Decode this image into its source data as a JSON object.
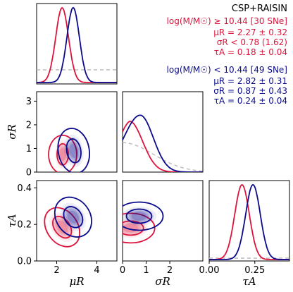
{
  "colors": {
    "high_mass": "#dc143c",
    "low_mass": "#0a0a8c",
    "prior": "#bbbbbb"
  },
  "legend": {
    "title": "CSP+RAISIN",
    "high_mass": {
      "header": "log(M/M☉) ≥ 10.44 [30 SNe]",
      "lines": [
        "μR = 2.27 ± 0.32",
        "σR < 0.78 (1.62)",
        "τA = 0.18 ± 0.04"
      ]
    },
    "low_mass": {
      "header": "log(M/M☉) < 10.44 [49 SNe]",
      "lines": [
        "μR = 2.82 ± 0.31",
        "σR = 0.87 ± 0.43",
        "τA = 0.24 ± 0.04"
      ]
    }
  },
  "chart_data": {
    "type": "corner",
    "parameters": [
      "μR",
      "σR",
      "τA"
    ],
    "axis_labels": {
      "mu_R": "μR",
      "sigma_R": "σR",
      "tau_A": "τA"
    },
    "ranges": {
      "mu_R": [
        1,
        5
      ],
      "sigma_R": [
        0,
        3.4
      ],
      "tau_A": [
        0,
        0.44
      ]
    },
    "ticks": {
      "mu_R": [
        {
          "v": 2,
          "t": "2"
        },
        {
          "v": 4,
          "t": "4"
        }
      ],
      "sigma_R": [
        {
          "v": 0,
          "t": "0"
        },
        {
          "v": 1,
          "t": "1"
        },
        {
          "v": 2,
          "t": "2"
        },
        {
          "v": 3,
          "t": "3"
        }
      ],
      "tau_A_y": [
        {
          "v": 0.0,
          "t": "0.0"
        },
        {
          "v": 0.2,
          "t": "0.2"
        },
        {
          "v": 0.4,
          "t": "0.4"
        }
      ],
      "tau_A_x": [
        {
          "v": 0.0,
          "t": "0.00"
        },
        {
          "v": 0.25,
          "t": "0.25"
        }
      ]
    },
    "series": [
      {
        "name": "high_mass",
        "mu_R": [
          2.27,
          0.32
        ],
        "sigma_R_peak": 0.3,
        "sigma_R_width": 0.78,
        "tau_A": [
          0.18,
          0.04
        ]
      },
      {
        "name": "low_mass",
        "mu_R": [
          2.82,
          0.31
        ],
        "sigma_R_peak": 0.75,
        "sigma_R_width": 0.6,
        "tau_A": [
          0.24,
          0.04
        ]
      }
    ],
    "prior": {
      "sigma_R": "half-normal",
      "sigma_R_scale": 1.3
    }
  }
}
